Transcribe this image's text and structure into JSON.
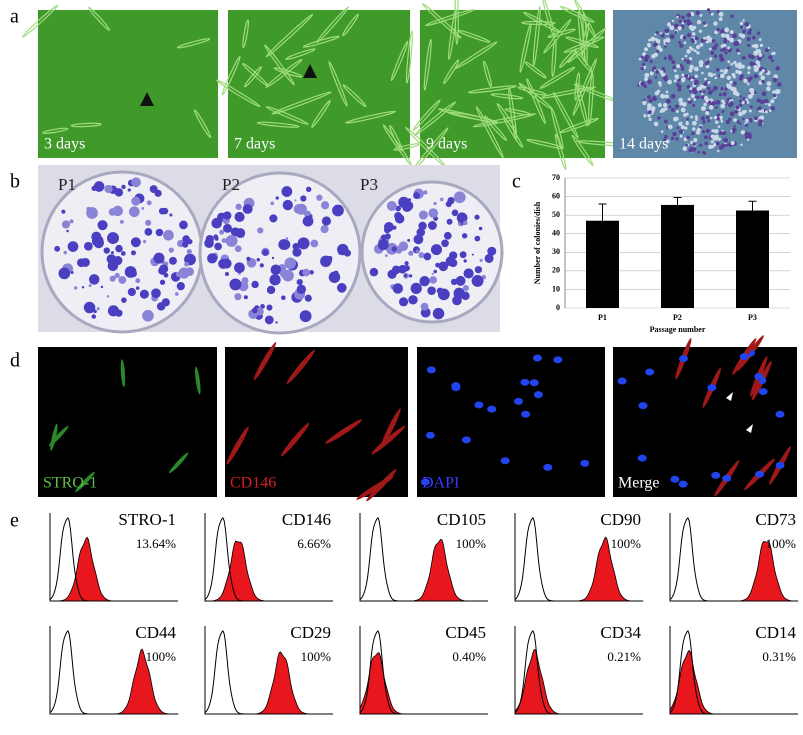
{
  "panel_labels": [
    "a",
    "b",
    "c",
    "d",
    "e"
  ],
  "timecourse": [
    "3 days",
    "7 days",
    "9 days",
    "14 days"
  ],
  "plates": [
    "P1",
    "P2",
    "P3"
  ],
  "chart_data": {
    "type": "bar",
    "ylabel": "Number of colonies/dish",
    "xlabel": "Passage number",
    "categories": [
      "P1",
      "P2",
      "P3"
    ],
    "values": [
      47,
      55.5,
      52.5
    ],
    "errors": [
      9,
      4,
      5
    ],
    "color": "#000000",
    "ylim": [
      0,
      70
    ],
    "yticks": [
      0,
      10,
      20,
      30,
      40,
      50,
      60,
      70
    ],
    "grid": true
  },
  "staining": [
    "STRO-1",
    "CD146",
    "DAPI",
    "Merge"
  ],
  "flow": [
    {
      "marker": "STRO-1",
      "percent": "13.64%"
    },
    {
      "marker": "CD146",
      "percent": "6.66%"
    },
    {
      "marker": "CD105",
      "percent": "100%"
    },
    {
      "marker": "CD90",
      "percent": "100%"
    },
    {
      "marker": "CD73",
      "percent": "100%"
    },
    {
      "marker": "CD44",
      "percent": "100%"
    },
    {
      "marker": "CD29",
      "percent": "100%"
    },
    {
      "marker": "CD45",
      "percent": "0.40%"
    },
    {
      "marker": "CD34",
      "percent": "0.21%"
    },
    {
      "marker": "CD14",
      "percent": "0.31%"
    }
  ]
}
